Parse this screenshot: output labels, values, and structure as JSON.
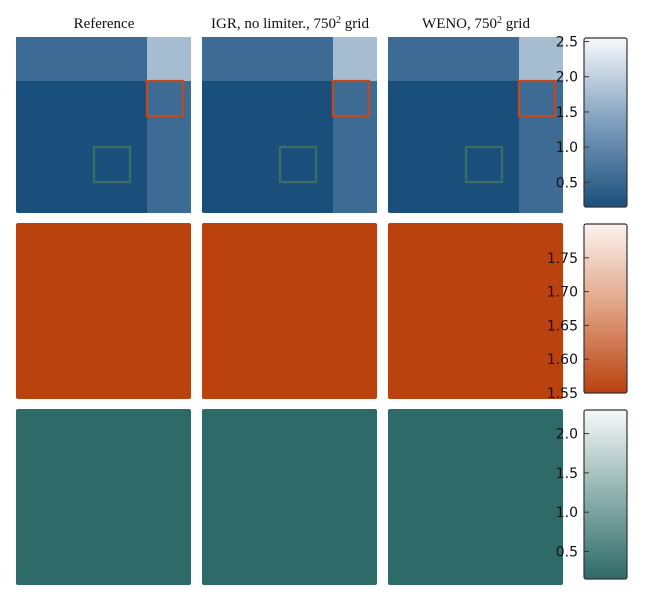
{
  "column_titles": [
    "Reference",
    "IGR, no limiter., 750",
    "WENO, 750"
  ],
  "column_title_superscripts": [
    "",
    "2",
    "2"
  ],
  "column_title_suffixes": [
    "",
    " grid",
    " grid"
  ],
  "colors": {
    "blue_dark": "#1a4f7c",
    "blue_mid": "#3e6b93",
    "blue_light": "#a6bcd0",
    "orange": "#b9420f",
    "teal": "#2e6b68",
    "highlight_red": "#c4471d",
    "highlight_green": "#3d6e64"
  },
  "chart_data": [
    {
      "type": "heatmap",
      "row": 1,
      "description_values": "density-like field; three panels share one colorbar",
      "colorbar": {
        "min": 0.15,
        "max": 2.55,
        "ticks": [
          0.5,
          1.0,
          1.5,
          2.0,
          2.5
        ],
        "tick_labels": [
          "0.5",
          "1.0",
          "1.5",
          "2.0",
          "2.5"
        ],
        "colormap": [
          "#1a4f7c",
          "#7f9fbd",
          "#f7f9fb"
        ]
      },
      "panels": [
        "Reference",
        "IGR, no limiter., 750² grid",
        "WENO, 750² grid"
      ]
    },
    {
      "type": "heatmap",
      "row": 2,
      "colorbar": {
        "min": 1.55,
        "max": 1.8,
        "ticks": [
          1.55,
          1.6,
          1.65,
          1.7,
          1.75
        ],
        "tick_labels": [
          "1.55",
          "1.60",
          "1.65",
          "1.70",
          "1.75"
        ],
        "colormap": [
          "#b9420f",
          "#e0a081",
          "#fbf3ef"
        ]
      },
      "panels": [
        "Reference",
        "IGR, no limiter., 750² grid",
        "WENO, 750² grid"
      ]
    },
    {
      "type": "heatmap",
      "row": 3,
      "colorbar": {
        "min": 0.15,
        "max": 2.3,
        "ticks": [
          0.5,
          1.0,
          1.5,
          2.0
        ],
        "tick_labels": [
          "0.5",
          "1.0",
          "1.5",
          "2.0"
        ],
        "colormap": [
          "#2e6b68",
          "#8fb1ae",
          "#f6f9f9"
        ]
      },
      "panels": [
        "Reference",
        "IGR, no limiter., 750² grid",
        "WENO, 750² grid"
      ]
    }
  ]
}
